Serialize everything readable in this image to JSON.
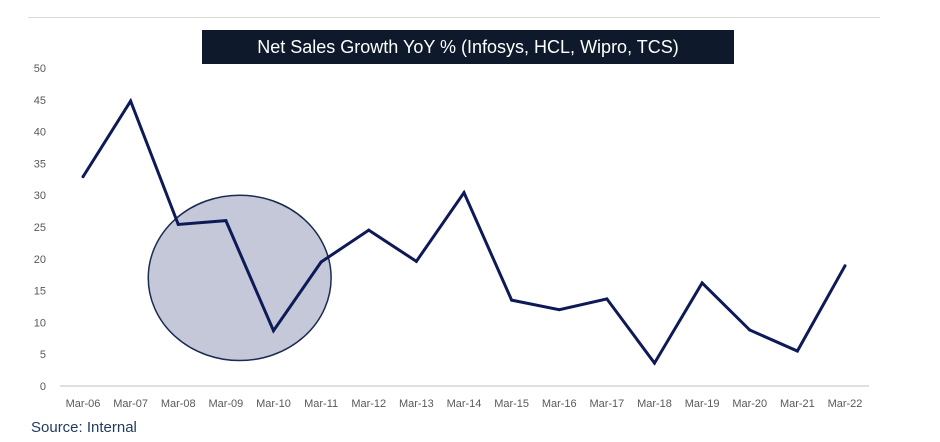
{
  "title": "Net Sales Growth YoY % (Infosys, HCL, Wipro, TCS)",
  "source": "Source: Internal",
  "colors": {
    "line": "#0e1a57",
    "circle_fill": "#c4c8d9",
    "circle_stroke": "#1c2b52",
    "title_bg": "#0e1a2b",
    "axis": "#bfbfbf"
  },
  "chart_data": {
    "type": "line",
    "title": "Net Sales Growth YoY % (Infosys, HCL, Wipro, TCS)",
    "xlabel": "",
    "ylabel": "",
    "ylim": [
      0,
      50
    ],
    "yticks": [
      0,
      5,
      10,
      15,
      20,
      25,
      30,
      35,
      40,
      45,
      50
    ],
    "grid": false,
    "legend": "none",
    "categories": [
      "Mar-06",
      "Mar-07",
      "Mar-08",
      "Mar-09",
      "Mar-10",
      "Mar-11",
      "Mar-12",
      "Mar-13",
      "Mar-14",
      "Mar-15",
      "Mar-16",
      "Mar-17",
      "Mar-18",
      "Mar-19",
      "Mar-20",
      "Mar-21",
      "Mar-22"
    ],
    "series": [
      {
        "values": [
          32.9,
          44.8,
          25.4,
          26.0,
          8.7,
          19.5,
          24.5,
          19.6,
          30.4,
          13.5,
          12.0,
          13.7,
          3.6,
          16.2,
          8.8,
          5.5,
          18.9
        ]
      }
    ],
    "annotations": [
      {
        "type": "circle",
        "x_range": [
          "Mar-08",
          "Mar-11"
        ],
        "y_range": [
          4,
          30
        ]
      }
    ]
  }
}
